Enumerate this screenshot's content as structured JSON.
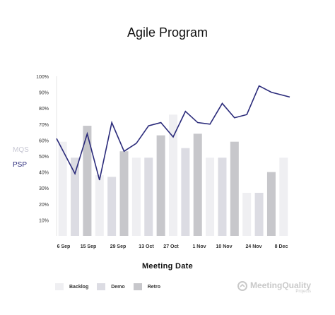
{
  "page": {
    "brand_name": "MeetingQuality",
    "brand_sub": "Projects"
  },
  "chart_data": {
    "type": "bar",
    "title": "Agile Program",
    "xlabel": "Meeting Date",
    "ylabel": "",
    "side_labels": [
      "MQS",
      "PSP"
    ],
    "side_label_colors": [
      "#c8c8d4",
      "#2a2a7a"
    ],
    "ylim": [
      0,
      100
    ],
    "y_ticks": [
      "10%",
      "20%",
      "30%",
      "40%",
      "50%",
      "60%",
      "70%",
      "80%",
      "90%",
      "100%"
    ],
    "y_tick_values": [
      10,
      20,
      30,
      40,
      50,
      60,
      70,
      80,
      90,
      100
    ],
    "x_tick_labels": [
      "6 Sep",
      "15 Sep",
      "29 Sep",
      "13 Oct",
      "27 Oct",
      "1 Nov",
      "10 Nov",
      "24 Nov",
      "8 Dec"
    ],
    "legend": [
      {
        "label": "Backlog",
        "color": "#efeff2"
      },
      {
        "label": "Demo",
        "color": "#dcdce3"
      },
      {
        "label": "Retro",
        "color": "#c7c7cb"
      }
    ],
    "bars": [
      {
        "kind": "Backlog",
        "value": 59
      },
      {
        "kind": "Demo",
        "value": 49
      },
      {
        "kind": "Retro",
        "value": 69
      },
      {
        "kind": "Backlog",
        "value": 38
      },
      {
        "kind": "Demo",
        "value": 37
      },
      {
        "kind": "Retro",
        "value": 53
      },
      {
        "kind": "Backlog",
        "value": 49
      },
      {
        "kind": "Demo",
        "value": 49
      },
      {
        "kind": "Retro",
        "value": 63
      },
      {
        "kind": "Backlog",
        "value": 76
      },
      {
        "kind": "Demo",
        "value": 55
      },
      {
        "kind": "Retro",
        "value": 64
      },
      {
        "kind": "Backlog",
        "value": 49
      },
      {
        "kind": "Demo",
        "value": 49
      },
      {
        "kind": "Retro",
        "value": 59
      },
      {
        "kind": "Backlog",
        "value": 27
      },
      {
        "kind": "Demo",
        "value": 27
      },
      {
        "kind": "Retro",
        "value": 40
      },
      {
        "kind": "Backlog",
        "value": 49
      }
    ],
    "line": {
      "color": "#2a2a7a",
      "values": [
        61,
        39,
        64,
        35,
        71,
        53,
        58,
        69,
        71,
        62,
        78,
        71,
        70,
        83,
        74,
        76,
        94,
        90,
        87
      ]
    },
    "grid": false
  }
}
